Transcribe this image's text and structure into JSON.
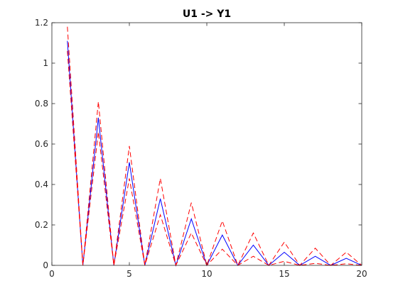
{
  "chart_data": {
    "type": "line",
    "title": "U1 -> Y1",
    "xlabel": "",
    "ylabel": "",
    "xlim": [
      0,
      20
    ],
    "ylim": [
      0,
      1.2
    ],
    "grid": false,
    "x_ticks": [
      0,
      5,
      10,
      15,
      20
    ],
    "x_tick_labels": [
      "0",
      "5",
      "10",
      "15",
      "20"
    ],
    "y_ticks": [
      0,
      0.2,
      0.4,
      0.6,
      0.8,
      1,
      1.2
    ],
    "y_tick_labels": [
      "0",
      "0.2",
      "0.4",
      "0.6",
      "0.8",
      "1",
      "1.2"
    ],
    "x": [
      1,
      2,
      3,
      4,
      5,
      6,
      7,
      8,
      9,
      10,
      11,
      12,
      13,
      14,
      15,
      16,
      17,
      18,
      19,
      20
    ],
    "series": [
      {
        "color": "#0000ff",
        "style": "solid",
        "values": [
          1.11,
          0.0,
          0.73,
          0.0,
          0.51,
          0.0,
          0.33,
          0.0,
          0.23,
          0.0,
          0.15,
          0.0,
          0.1,
          0.0,
          0.065,
          0.0,
          0.045,
          0.0,
          0.035,
          0.0
        ]
      },
      {
        "color": "#ff0000",
        "style": "dashed",
        "values": [
          1.18,
          0.0,
          0.81,
          0.0,
          0.59,
          0.0,
          0.43,
          0.0,
          0.31,
          0.0,
          0.22,
          0.0,
          0.16,
          0.0,
          0.115,
          0.0,
          0.085,
          0.0,
          0.065,
          0.0
        ]
      },
      {
        "color": "#ff0000",
        "style": "dashed",
        "values": [
          1.06,
          0.0,
          0.66,
          0.0,
          0.43,
          0.0,
          0.25,
          0.0,
          0.16,
          0.0,
          0.08,
          0.0,
          0.045,
          0.0,
          0.02,
          0.0,
          0.01,
          0.0,
          0.008,
          0.0
        ]
      }
    ]
  }
}
